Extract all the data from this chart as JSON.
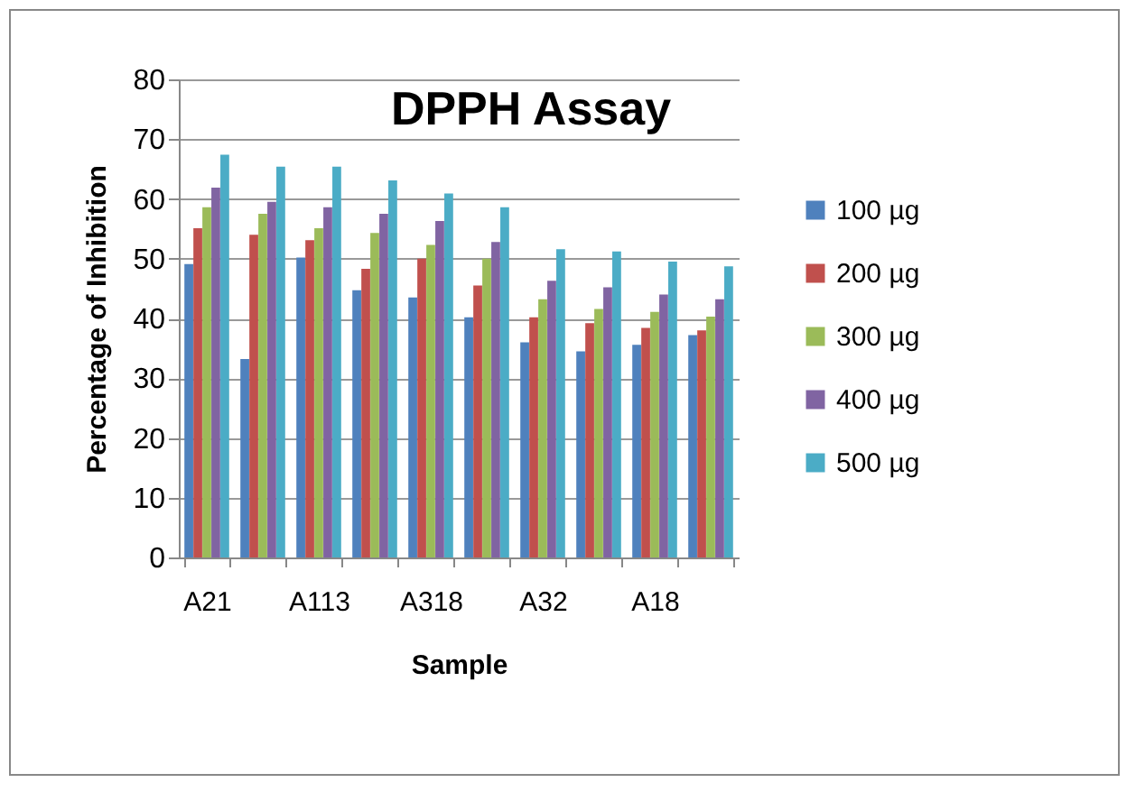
{
  "chart_data": {
    "type": "bar",
    "title": "DPPH Assay",
    "xlabel": "Sample",
    "ylabel": "Percentage of Inhibition",
    "categories": [
      "A21",
      null,
      "A113",
      null,
      "A318",
      null,
      "A32",
      null,
      "A18",
      null
    ],
    "series": [
      {
        "name": "100 µg",
        "color": "#4f81bd",
        "values": [
          49.1,
          33.2,
          50.2,
          44.7,
          43.5,
          40.2,
          36,
          34.5,
          35.6,
          37.2
        ]
      },
      {
        "name": "200 µg",
        "color": "#c0504d",
        "values": [
          55.1,
          54,
          53.1,
          48.3,
          50,
          45.5,
          40.2,
          39.2,
          38.4,
          38
        ]
      },
      {
        "name": "300 µg",
        "color": "#9bbb59",
        "values": [
          58.6,
          57.5,
          55.1,
          54.3,
          52.3,
          50,
          43.2,
          41.6,
          41.1,
          40.3
        ]
      },
      {
        "name": "400 µg",
        "color": "#8064a2",
        "values": [
          61.9,
          59.5,
          58.6,
          57.5,
          56.3,
          52.8,
          46.3,
          45.2,
          44,
          43.2
        ]
      },
      {
        "name": "500 µg",
        "color": "#4bacc6",
        "values": [
          67.4,
          65.4,
          65.4,
          63.1,
          60.9,
          58.6,
          51.6,
          51.2,
          49.5,
          48.7
        ]
      }
    ],
    "ylim": [
      0,
      80
    ],
    "yticks": [
      0,
      10,
      20,
      30,
      40,
      50,
      60,
      70,
      80
    ],
    "grid": "y",
    "legend": "right"
  }
}
